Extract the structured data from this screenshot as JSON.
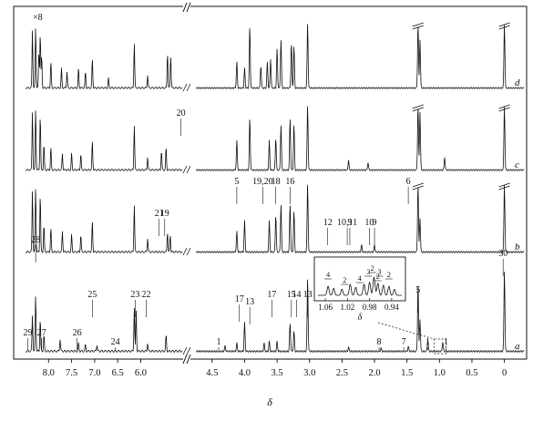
{
  "chart_data": {
    "type": "line",
    "title": "",
    "xlabel": "δ",
    "ylabel": "",
    "x_reversed": true,
    "axis_break": {
      "left_segment": [
        8.5,
        5.1
      ],
      "right_segment": [
        4.75,
        -0.3
      ]
    },
    "x_ticks": [
      {
        "value": 8.0,
        "label": "8.0"
      },
      {
        "value": 7.5,
        "label": "7.5"
      },
      {
        "value": 7.0,
        "label": "7.0"
      },
      {
        "value": 6.5,
        "label": "6.5"
      },
      {
        "value": 6.0,
        "label": "6.0"
      },
      {
        "value": 4.5,
        "label": "4.5"
      },
      {
        "value": 4.0,
        "label": "4.0"
      },
      {
        "value": 3.5,
        "label": "3.5"
      },
      {
        "value": 3.0,
        "label": "3.0"
      },
      {
        "value": 2.5,
        "label": "2.5"
      },
      {
        "value": 2.0,
        "label": "2.0"
      },
      {
        "value": 1.5,
        "label": "1.5"
      },
      {
        "value": 1.0,
        "label": "1.0"
      },
      {
        "value": 0.5,
        "label": "0.5"
      },
      {
        "value": 0,
        "label": "0"
      }
    ],
    "scale_label": "×8",
    "series": [
      {
        "name": "d",
        "peaks": [
          {
            "x": 8.35,
            "h": 0.9
          },
          {
            "x": 8.28,
            "h": 0.95
          },
          {
            "x": 8.21,
            "h": 0.55
          },
          {
            "x": 8.18,
            "h": 0.85
          },
          {
            "x": 8.15,
            "h": 0.5
          },
          {
            "x": 7.95,
            "h": 0.4
          },
          {
            "x": 7.72,
            "h": 0.3
          },
          {
            "x": 7.6,
            "h": 0.25
          },
          {
            "x": 7.35,
            "h": 0.3
          },
          {
            "x": 7.2,
            "h": 0.25
          },
          {
            "x": 7.05,
            "h": 0.45
          },
          {
            "x": 6.7,
            "h": 0.15
          },
          {
            "x": 6.14,
            "h": 0.7
          },
          {
            "x": 5.85,
            "h": 0.2
          },
          {
            "x": 5.42,
            "h": 0.55
          },
          {
            "x": 5.35,
            "h": 0.5
          },
          {
            "x": 4.12,
            "h": 0.4
          },
          {
            "x": 4.0,
            "h": 0.3
          },
          {
            "x": 3.92,
            "h": 0.95
          },
          {
            "x": 3.75,
            "h": 0.35
          },
          {
            "x": 3.65,
            "h": 0.4
          },
          {
            "x": 3.6,
            "h": 0.45
          },
          {
            "x": 3.5,
            "h": 0.6
          },
          {
            "x": 3.44,
            "h": 0.75
          },
          {
            "x": 3.28,
            "h": 0.7
          },
          {
            "x": 3.24,
            "h": 0.65
          },
          {
            "x": 3.03,
            "h": 1.0
          },
          {
            "x": 1.33,
            "h": 1.0
          },
          {
            "x": 1.3,
            "h": 0.75
          },
          {
            "x": 0.0,
            "h": 1.0
          }
        ]
      },
      {
        "name": "c",
        "peaks": [
          {
            "x": 8.35,
            "h": 0.9
          },
          {
            "x": 8.28,
            "h": 0.95
          },
          {
            "x": 8.18,
            "h": 0.85
          },
          {
            "x": 8.1,
            "h": 0.4
          },
          {
            "x": 7.95,
            "h": 0.35
          },
          {
            "x": 7.7,
            "h": 0.25
          },
          {
            "x": 7.5,
            "h": 0.25
          },
          {
            "x": 7.3,
            "h": 0.25
          },
          {
            "x": 7.05,
            "h": 0.45
          },
          {
            "x": 6.14,
            "h": 0.7
          },
          {
            "x": 5.85,
            "h": 0.2
          },
          {
            "x": 5.55,
            "h": 0.3
          },
          {
            "x": 5.45,
            "h": 0.35
          },
          {
            "x": 4.12,
            "h": 0.45
          },
          {
            "x": 3.92,
            "h": 0.8
          },
          {
            "x": 3.62,
            "h": 0.45
          },
          {
            "x": 3.52,
            "h": 0.5
          },
          {
            "x": 3.44,
            "h": 0.7
          },
          {
            "x": 3.3,
            "h": 0.8
          },
          {
            "x": 3.24,
            "h": 0.7
          },
          {
            "x": 3.03,
            "h": 1.0
          },
          {
            "x": 2.4,
            "h": 0.15
          },
          {
            "x": 2.1,
            "h": 0.12
          },
          {
            "x": 1.33,
            "h": 1.0
          },
          {
            "x": 1.3,
            "h": 0.9
          },
          {
            "x": 0.92,
            "h": 0.2
          },
          {
            "x": 0.0,
            "h": 1.0
          }
        ]
      },
      {
        "name": "b",
        "peaks": [
          {
            "x": 8.35,
            "h": 0.9
          },
          {
            "x": 8.28,
            "h": 0.95
          },
          {
            "x": 8.18,
            "h": 0.85
          },
          {
            "x": 8.1,
            "h": 0.4
          },
          {
            "x": 7.95,
            "h": 0.35
          },
          {
            "x": 7.7,
            "h": 0.3
          },
          {
            "x": 7.5,
            "h": 0.25
          },
          {
            "x": 7.3,
            "h": 0.25
          },
          {
            "x": 7.05,
            "h": 0.45
          },
          {
            "x": 6.14,
            "h": 0.7
          },
          {
            "x": 5.85,
            "h": 0.2
          },
          {
            "x": 5.42,
            "h": 0.3
          },
          {
            "x": 5.36,
            "h": 0.25
          },
          {
            "x": 4.12,
            "h": 0.3
          },
          {
            "x": 4.0,
            "h": 0.45
          },
          {
            "x": 3.62,
            "h": 0.45
          },
          {
            "x": 3.52,
            "h": 0.55
          },
          {
            "x": 3.44,
            "h": 0.7
          },
          {
            "x": 3.3,
            "h": 0.7
          },
          {
            "x": 3.24,
            "h": 0.6
          },
          {
            "x": 3.03,
            "h": 1.0
          },
          {
            "x": 2.2,
            "h": 0.1
          },
          {
            "x": 2.0,
            "h": 0.1
          },
          {
            "x": 1.33,
            "h": 1.0
          },
          {
            "x": 1.3,
            "h": 0.5
          },
          {
            "x": 0.0,
            "h": 1.0
          }
        ]
      },
      {
        "name": "a",
        "peaks": [
          {
            "x": 8.35,
            "h": 0.45
          },
          {
            "x": 8.28,
            "h": 0.7
          },
          {
            "x": 8.18,
            "h": 0.4
          },
          {
            "x": 8.1,
            "h": 0.2
          },
          {
            "x": 7.75,
            "h": 0.15
          },
          {
            "x": 7.35,
            "h": 0.1
          },
          {
            "x": 7.2,
            "h": 0.08
          },
          {
            "x": 6.95,
            "h": 0.08
          },
          {
            "x": 6.14,
            "h": 0.55
          },
          {
            "x": 6.1,
            "h": 0.5
          },
          {
            "x": 5.85,
            "h": 0.1
          },
          {
            "x": 5.45,
            "h": 0.2
          },
          {
            "x": 4.3,
            "h": 0.07
          },
          {
            "x": 4.12,
            "h": 0.1
          },
          {
            "x": 4.0,
            "h": 0.35
          },
          {
            "x": 3.7,
            "h": 0.1
          },
          {
            "x": 3.62,
            "h": 0.12
          },
          {
            "x": 3.5,
            "h": 0.12
          },
          {
            "x": 3.3,
            "h": 0.35
          },
          {
            "x": 3.24,
            "h": 0.25
          },
          {
            "x": 3.03,
            "h": 0.9
          },
          {
            "x": 2.4,
            "h": 0.05
          },
          {
            "x": 1.9,
            "h": 0.04
          },
          {
            "x": 1.48,
            "h": 0.06
          },
          {
            "x": 1.33,
            "h": 0.85
          },
          {
            "x": 1.3,
            "h": 0.4
          },
          {
            "x": 1.18,
            "h": 0.15
          },
          {
            "x": 0.95,
            "h": 0.12
          },
          {
            "x": 0.0,
            "h": 1.0
          }
        ]
      }
    ],
    "annotations": [
      {
        "series": "a",
        "x": 8.45,
        "label": "29"
      },
      {
        "series": "a",
        "x": 8.28,
        "label": "28"
      },
      {
        "series": "a",
        "x": 8.15,
        "label": "27"
      },
      {
        "series": "a",
        "x": 7.38,
        "label": "26"
      },
      {
        "series": "a",
        "x": 7.05,
        "label": "25"
      },
      {
        "series": "a",
        "x": 6.55,
        "label": "24"
      },
      {
        "series": "a",
        "x": 6.12,
        "label": "23"
      },
      {
        "series": "a",
        "x": 5.88,
        "label": "22"
      },
      {
        "series": "a",
        "x": 4.4,
        "label": "1"
      },
      {
        "series": "a",
        "x": 4.08,
        "label": "17"
      },
      {
        "series": "a",
        "x": 3.92,
        "label": "13"
      },
      {
        "series": "a",
        "x": 3.58,
        "label": "17"
      },
      {
        "series": "a",
        "x": 3.28,
        "label": "15"
      },
      {
        "series": "a",
        "x": 3.2,
        "label": "14"
      },
      {
        "series": "a",
        "x": 3.03,
        "label": "13"
      },
      {
        "series": "a",
        "x": 1.93,
        "label": "8"
      },
      {
        "series": "a",
        "x": 1.55,
        "label": "7"
      },
      {
        "series": "a",
        "x": 1.33,
        "label": "5"
      },
      {
        "series": "a",
        "x": 1.18,
        "label": "1"
      },
      {
        "series": "a",
        "x": 0.9,
        "label": "1"
      },
      {
        "series": "a",
        "x": 0.02,
        "label": "30"
      },
      {
        "series": "b",
        "x": 5.6,
        "label": "21"
      },
      {
        "series": "b",
        "x": 5.48,
        "label": "19"
      },
      {
        "series": "b",
        "x": 4.12,
        "label": "5"
      },
      {
        "series": "b",
        "x": 3.72,
        "label": "19,20"
      },
      {
        "series": "b",
        "x": 3.52,
        "label": "18"
      },
      {
        "series": "b",
        "x": 3.3,
        "label": "16"
      },
      {
        "series": "b",
        "x": 2.72,
        "label": "12"
      },
      {
        "series": "b",
        "x": 2.42,
        "label": "10,11"
      },
      {
        "series": "b",
        "x": 2.38,
        "label": "9"
      },
      {
        "series": "b",
        "x": 2.08,
        "label": "10"
      },
      {
        "series": "b",
        "x": 2.0,
        "label": "9"
      },
      {
        "series": "b",
        "x": 1.48,
        "label": "6"
      },
      {
        "series": "c",
        "x": 4.98,
        "label": "20"
      }
    ],
    "inset": {
      "x_ticks": [
        {
          "value": 1.06,
          "label": "1.06"
        },
        {
          "value": 1.02,
          "label": "1.02"
        },
        {
          "value": 0.98,
          "label": "0.98"
        },
        {
          "value": 0.94,
          "label": "0.94"
        }
      ],
      "xlabel": "δ",
      "labels": [
        "4",
        "2",
        "4",
        "3",
        "2",
        "2",
        "3",
        "2"
      ]
    }
  }
}
